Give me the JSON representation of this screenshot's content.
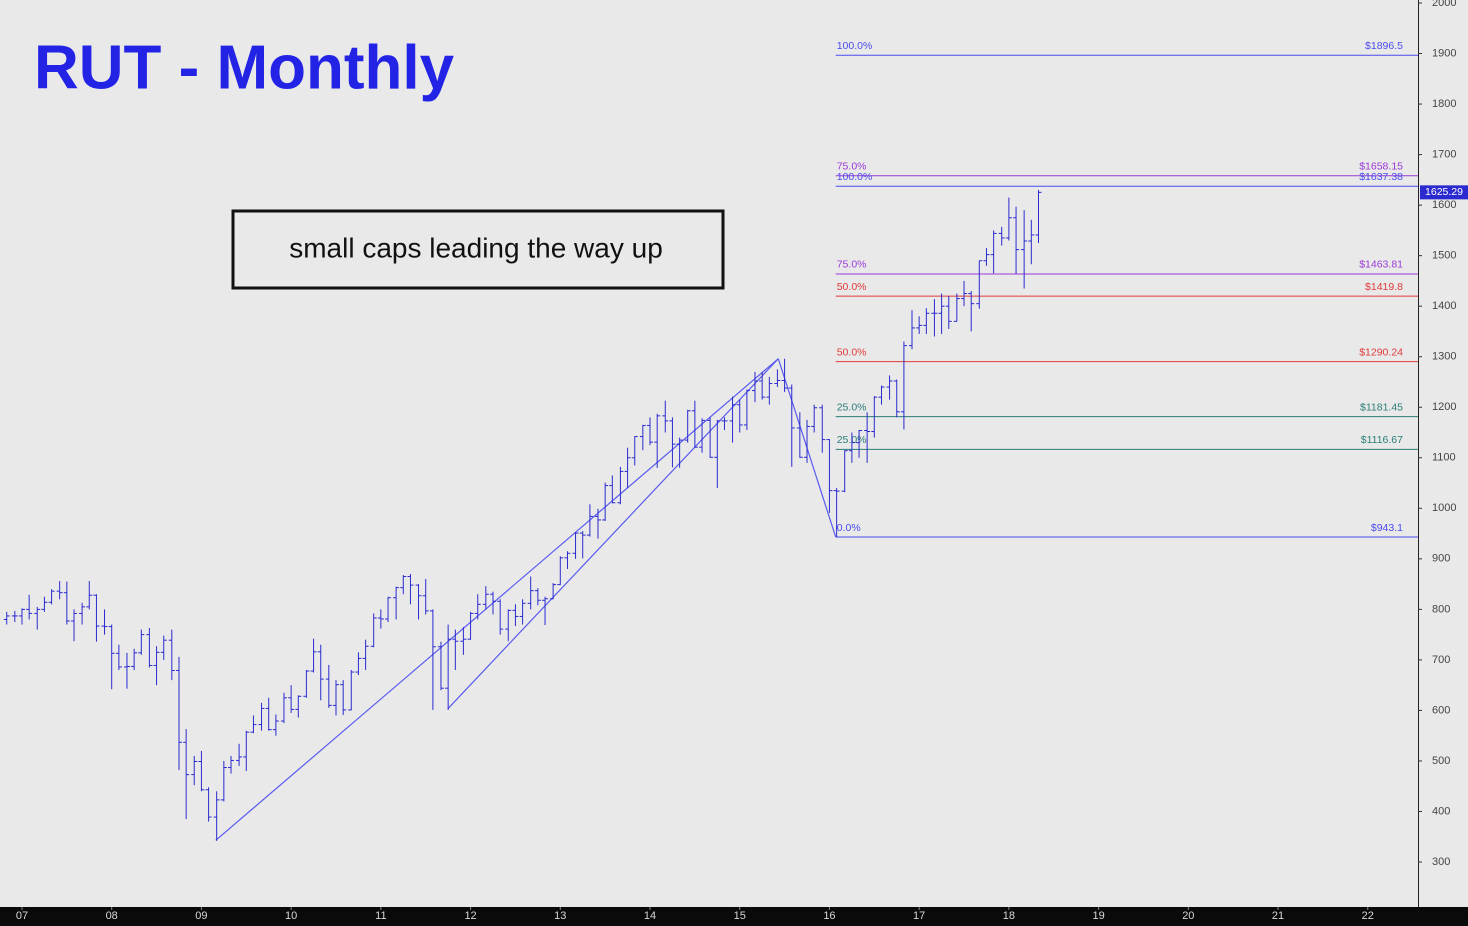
{
  "chart_data": {
    "type": "ohlc",
    "title": "RUT - Monthly",
    "annotation": "small caps leading the way up",
    "xlim": [
      6.755,
      22.56
    ],
    "ylim": [
      211,
      2000
    ],
    "xticks": [
      {
        "value": 7,
        "label": "07"
      },
      {
        "value": 8,
        "label": "08"
      },
      {
        "value": 9,
        "label": "09"
      },
      10,
      11,
      12,
      13,
      14,
      15,
      16,
      17,
      18,
      19,
      20,
      21,
      22
    ],
    "yticks": [
      300,
      400,
      500,
      600,
      700,
      800,
      900,
      1000,
      1100,
      1200,
      1300,
      1400,
      1500,
      1600,
      1700,
      1800,
      1900,
      2000
    ],
    "x": [
      6.83,
      6.92,
      7,
      7.08,
      7.17,
      7.25,
      7.33,
      7.42,
      7.5,
      7.58,
      7.67,
      7.75,
      7.83,
      7.92,
      8,
      8.08,
      8.17,
      8.25,
      8.33,
      8.42,
      8.5,
      8.58,
      8.67,
      8.75,
      8.83,
      8.92,
      9,
      9.08,
      9.17,
      9.25,
      9.33,
      9.42,
      9.5,
      9.58,
      9.67,
      9.75,
      9.83,
      9.92,
      10,
      10.08,
      10.17,
      10.25,
      10.33,
      10.42,
      10.5,
      10.58,
      10.67,
      10.75,
      10.83,
      10.92,
      11,
      11.08,
      11.17,
      11.25,
      11.33,
      11.42,
      11.5,
      11.58,
      11.67,
      11.75,
      11.83,
      11.92,
      12,
      12.08,
      12.17,
      12.25,
      12.33,
      12.42,
      12.5,
      12.58,
      12.67,
      12.75,
      12.83,
      12.92,
      13,
      13.08,
      13.17,
      13.25,
      13.33,
      13.42,
      13.5,
      13.58,
      13.67,
      13.75,
      13.83,
      13.92,
      14,
      14.08,
      14.17,
      14.25,
      14.33,
      14.42,
      14.5,
      14.58,
      14.67,
      14.75,
      14.83,
      14.92,
      15,
      15.08,
      15.17,
      15.25,
      15.33,
      15.42,
      15.5,
      15.58,
      15.67,
      15.75,
      15.83,
      15.92,
      16,
      16.08,
      16.17,
      16.25,
      16.33,
      16.42,
      16.5,
      16.58,
      16.67,
      16.75,
      16.83,
      16.92,
      17,
      17.08,
      17.17,
      17.25,
      17.33,
      17.42,
      17.5,
      17.58,
      17.67,
      17.75,
      17.83,
      17.92,
      18,
      18.08,
      18.17,
      18.25,
      18.33
    ],
    "series": [
      {
        "color": "#2a2ad0",
        "open": [
          780,
          787,
          787,
          800,
          792,
          800,
          814,
          836,
          833,
          777,
          792,
          805,
          828,
          767,
          766,
          713,
          686,
          687,
          714,
          750,
          689,
          715,
          739,
          679,
          537,
          473,
          499,
          443,
          389,
          423,
          487,
          501,
          508,
          557,
          572,
          604,
          562,
          579,
          625,
          602,
          628,
          678,
          716,
          662,
          610,
          651,
          601,
          676,
          703,
          727,
          783,
          781,
          823,
          843,
          865,
          848,
          827,
          797,
          726,
          644,
          741,
          737,
          741,
          792,
          810,
          830,
          816,
          761,
          798,
          786,
          812,
          837,
          818,
          821,
          849,
          902,
          911,
          951,
          947,
          984,
          977,
          1045,
          1011,
          1073,
          1100,
          1142,
          1164,
          1131,
          1183,
          1173,
          1127,
          1135,
          1193,
          1121,
          1174,
          1101,
          1173,
          1173,
          1205,
          1165,
          1233,
          1252,
          1220,
          1247,
          1253,
          1238,
          1159,
          1101,
          1162,
          1199,
          1136,
          1035,
          1034,
          1114,
          1130,
          1154,
          1152,
          1220,
          1240,
          1252,
          1191,
          1322,
          1357,
          1362,
          1386,
          1386,
          1400,
          1370,
          1415,
          1425,
          1405,
          1490,
          1502,
          1544,
          1535,
          1575,
          1512,
          1529,
          1541
        ],
        "high": [
          795,
          797,
          802,
          829,
          805,
          825,
          840,
          856,
          855,
          800,
          813,
          856,
          830,
          800,
          770,
          730,
          714,
          722,
          760,
          763,
          727,
          748,
          760,
          706,
          563,
          510,
          520,
          448,
          440,
          500,
          510,
          534,
          560,
          590,
          615,
          625,
          592,
          635,
          650,
          630,
          680,
          742,
          730,
          690,
          660,
          660,
          680,
          715,
          740,
          792,
          800,
          825,
          845,
          868,
          870,
          850,
          860,
          800,
          736,
          770,
          760,
          765,
          795,
          830,
          846,
          835,
          820,
          800,
          810,
          820,
          865,
          842,
          825,
          852,
          905,
          915,
          953,
          955,
          1008,
          999,
          1051,
          1065,
          1082,
          1120,
          1143,
          1165,
          1180,
          1187,
          1213,
          1180,
          1140,
          1195,
          1213,
          1178,
          1180,
          1175,
          1180,
          1221,
          1215,
          1235,
          1270,
          1270,
          1260,
          1275,
          1296,
          1245,
          1190,
          1175,
          1205,
          1205,
          1137,
          1040,
          1115,
          1150,
          1155,
          1190,
          1222,
          1243,
          1263,
          1255,
          1330,
          1392,
          1380,
          1396,
          1414,
          1425,
          1420,
          1425,
          1450,
          1430,
          1490,
          1515,
          1550,
          1557,
          1615,
          1597,
          1590,
          1571,
          1630
        ],
        "low": [
          770,
          775,
          770,
          780,
          760,
          795,
          810,
          820,
          770,
          737,
          770,
          800,
          736,
          750,
          642,
          680,
          643,
          680,
          710,
          685,
          650,
          700,
          660,
          482,
          385,
          452,
          440,
          380,
          342,
          420,
          475,
          490,
          480,
          555,
          560,
          560,
          550,
          575,
          595,
          586,
          625,
          675,
          620,
          605,
          590,
          591,
          600,
          670,
          680,
          725,
          762,
          775,
          780,
          830,
          810,
          780,
          790,
          601,
          640,
          601,
          680,
          710,
          740,
          780,
          800,
          790,
          750,
          737,
          767,
          770,
          800,
          808,
          769,
          820,
          848,
          880,
          900,
          901,
          944,
          940,
          975,
          1010,
          1008,
          1040,
          1085,
          1115,
          1125,
          1080,
          1150,
          1081,
          1080,
          1130,
          1120,
          1110,
          1100,
          1040,
          1155,
          1130,
          1150,
          1155,
          1210,
          1215,
          1205,
          1240,
          1230,
          1082,
          1100,
          1090,
          1150,
          1110,
          991,
          943,
          1032,
          1090,
          1100,
          1090,
          1140,
          1205,
          1215,
          1180,
          1156,
          1315,
          1345,
          1345,
          1340,
          1345,
          1355,
          1370,
          1400,
          1350,
          1395,
          1480,
          1465,
          1520,
          1530,
          1464,
          1435,
          1483,
          1525
        ],
        "close": [
          787,
          787,
          800,
          792,
          800,
          814,
          836,
          833,
          777,
          792,
          805,
          828,
          767,
          766,
          713,
          686,
          687,
          714,
          750,
          689,
          715,
          739,
          679,
          537,
          473,
          499,
          443,
          389,
          423,
          487,
          501,
          508,
          557,
          572,
          604,
          562,
          579,
          625,
          602,
          628,
          678,
          716,
          662,
          610,
          651,
          601,
          676,
          703,
          727,
          783,
          781,
          823,
          843,
          865,
          848,
          827,
          797,
          726,
          644,
          741,
          737,
          741,
          792,
          810,
          830,
          816,
          761,
          798,
          786,
          812,
          837,
          818,
          821,
          849,
          902,
          911,
          951,
          947,
          984,
          977,
          1045,
          1011,
          1073,
          1100,
          1142,
          1164,
          1131,
          1183,
          1173,
          1127,
          1135,
          1193,
          1121,
          1174,
          1101,
          1173,
          1173,
          1205,
          1165,
          1233,
          1252,
          1220,
          1247,
          1253,
          1238,
          1159,
          1101,
          1162,
          1199,
          1136,
          1035,
          1034,
          1114,
          1130,
          1154,
          1152,
          1220,
          1240,
          1252,
          1191,
          1322,
          1357,
          1362,
          1386,
          1386,
          1400,
          1370,
          1415,
          1425,
          1405,
          1490,
          1502,
          1544,
          1535,
          1575,
          1512,
          1529,
          1541,
          1625.29
        ]
      }
    ],
    "fib_levels": [
      {
        "label": "100.0%",
        "price_label": "$1896.5",
        "value": 1896.5,
        "color": "#4b4bf0"
      },
      {
        "label": "75.0%",
        "price_label": "$1658.15",
        "value": 1658.15,
        "color": "#9a3ad8"
      },
      {
        "label": "100.0%",
        "price_label": "$1637.38",
        "value": 1637.38,
        "color": "#4b4bf0"
      },
      {
        "label": "75.0%",
        "price_label": "$1463.81",
        "value": 1463.81,
        "color": "#9a3ad8"
      },
      {
        "label": "50.0%",
        "price_label": "$1419.8",
        "value": 1419.8,
        "color": "#e03a3a"
      },
      {
        "label": "50.0%",
        "price_label": "$1290.24",
        "value": 1290.24,
        "color": "#e03a3a"
      },
      {
        "label": "25.0%",
        "price_label": "$1181.45",
        "value": 1181.45,
        "color": "#2a7d78"
      },
      {
        "label": "25.0%",
        "price_label": "$1116.67",
        "value": 1116.67,
        "color": "#2a7d78"
      },
      {
        "label": "0.0%",
        "price_label": "$943.1",
        "value": 943.1,
        "color": "#4b4bf0"
      }
    ],
    "trendlines": [
      {
        "x": [
          9.16,
          15.43
        ],
        "y": [
          343,
          1296
        ],
        "color": "#5a5af0"
      },
      {
        "x": [
          11.75,
          15.43
        ],
        "y": [
          604,
          1296
        ],
        "color": "#5a5af0"
      },
      {
        "x": [
          15.43,
          16.07
        ],
        "y": [
          1296,
          943
        ],
        "color": "#5a5af0"
      }
    ]
  }
}
